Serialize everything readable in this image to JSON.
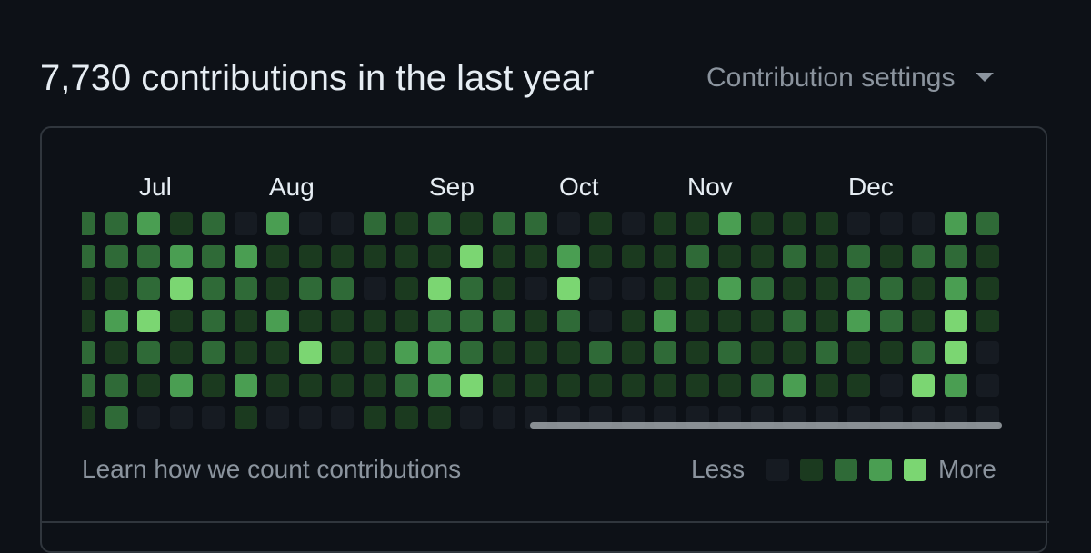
{
  "header": {
    "title": "7,730 contributions in the last year",
    "settings_label": "Contribution settings",
    "settings_icon": "caret-down-icon"
  },
  "graph": {
    "months": [
      "Jul",
      "Aug",
      "Sep",
      "Oct",
      "Nov",
      "Dec"
    ],
    "levels": [
      [
        2,
        2,
        1,
        1,
        2,
        2,
        1
      ],
      [
        2,
        2,
        1,
        3,
        1,
        2,
        2
      ],
      [
        3,
        2,
        2,
        4,
        2,
        1,
        0
      ],
      [
        1,
        3,
        4,
        1,
        1,
        3,
        0
      ],
      [
        2,
        2,
        2,
        2,
        2,
        1,
        0
      ],
      [
        0,
        3,
        2,
        1,
        1,
        3,
        1
      ],
      [
        3,
        1,
        1,
        3,
        1,
        1,
        0
      ],
      [
        0,
        1,
        2,
        1,
        4,
        1,
        0
      ],
      [
        0,
        1,
        2,
        1,
        1,
        1,
        0
      ],
      [
        2,
        1,
        0,
        1,
        1,
        1,
        1
      ],
      [
        1,
        1,
        1,
        1,
        3,
        2,
        1
      ],
      [
        2,
        1,
        4,
        2,
        3,
        3,
        1
      ],
      [
        1,
        4,
        2,
        2,
        2,
        4,
        0
      ],
      [
        2,
        1,
        1,
        2,
        1,
        1,
        0
      ],
      [
        2,
        1,
        0,
        1,
        1,
        1,
        0
      ],
      [
        0,
        3,
        4,
        2,
        1,
        1,
        0
      ],
      [
        1,
        1,
        0,
        0,
        2,
        1,
        0
      ],
      [
        0,
        1,
        0,
        1,
        1,
        1,
        0
      ],
      [
        1,
        1,
        1,
        3,
        2,
        1,
        0
      ],
      [
        1,
        2,
        1,
        1,
        1,
        1,
        0
      ],
      [
        3,
        1,
        3,
        1,
        2,
        1,
        0
      ],
      [
        1,
        1,
        2,
        1,
        1,
        2,
        0
      ],
      [
        1,
        2,
        1,
        2,
        1,
        3,
        0
      ],
      [
        1,
        1,
        1,
        1,
        2,
        1,
        0
      ],
      [
        0,
        2,
        2,
        3,
        1,
        1,
        0
      ],
      [
        0,
        1,
        2,
        2,
        1,
        0,
        0
      ],
      [
        0,
        2,
        1,
        1,
        2,
        4,
        0
      ],
      [
        3,
        2,
        3,
        4,
        4,
        3,
        0
      ],
      [
        2,
        1,
        1,
        1,
        0,
        0,
        0
      ]
    ]
  },
  "footer": {
    "learn_link": "Learn how we count contributions",
    "legend_less": "Less",
    "legend_more": "More",
    "legend_levels": [
      0,
      1,
      2,
      3,
      4
    ]
  }
}
